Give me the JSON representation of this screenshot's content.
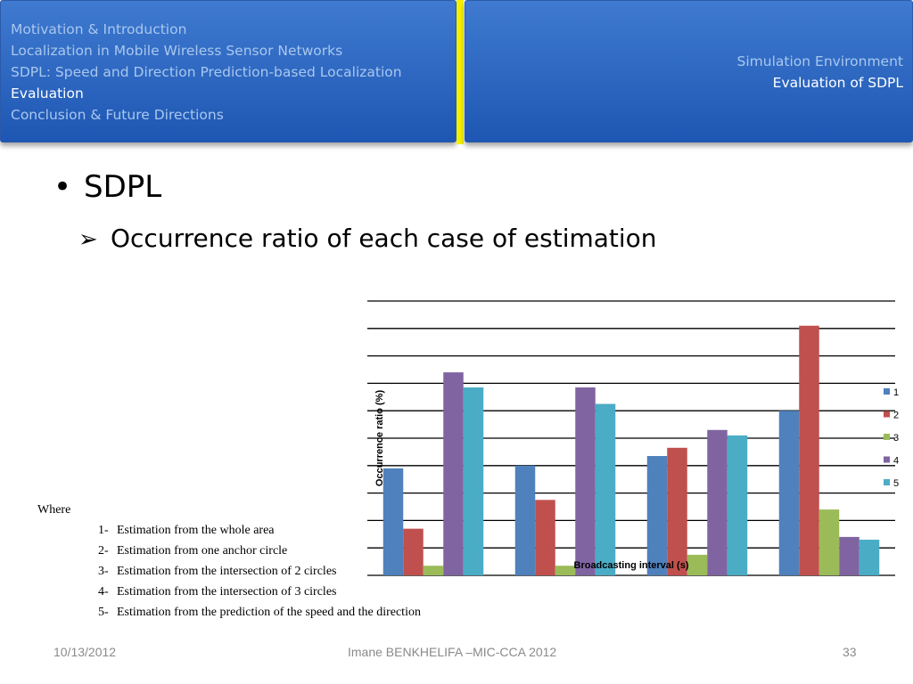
{
  "header": {
    "nav": [
      {
        "label": "Motivation & Introduction",
        "active": false
      },
      {
        "label": "Localization in  Mobile Wireless Sensor Networks",
        "active": false
      },
      {
        "label": "SDPL: Speed and Direction Prediction-based Localization",
        "active": false
      },
      {
        "label": "Evaluation",
        "active": true
      },
      {
        "label": "Conclusion & Future Directions",
        "active": false
      }
    ],
    "subnav": [
      {
        "label": "Simulation Environment",
        "active": false
      },
      {
        "label": "Evaluation of SDPL",
        "active": true
      }
    ],
    "colors": {
      "panel": "#2d6ac4",
      "divider": "#f5f000",
      "inactive_text": "#a9c7ee",
      "active_text": "#ffffff"
    }
  },
  "content": {
    "bullet": "SDPL",
    "subbullet": "Occurrence ratio of each case of estimation",
    "bullet_icon": "bullet-dot-icon",
    "subbullet_icon": "arrow-bullet-icon"
  },
  "chart_data": {
    "type": "bar",
    "ylabel": "Occurrence ratio  (%)",
    "xlabel": "Broadcasting interval (s)",
    "ylim": [
      0,
      10
    ],
    "grid": true,
    "legend_position": "right",
    "categories": [
      "",
      "",
      "",
      ""
    ],
    "series": [
      {
        "name": "1",
        "color": "#4f81bd",
        "values": [
          3.9,
          4.0,
          4.35,
          6.0
        ]
      },
      {
        "name": "2",
        "color": "#c0504d",
        "values": [
          1.7,
          2.75,
          4.65,
          9.1
        ]
      },
      {
        "name": "3",
        "color": "#9bbb59",
        "values": [
          0.35,
          0.35,
          0.75,
          2.4
        ]
      },
      {
        "name": "4",
        "color": "#8064a2",
        "values": [
          7.4,
          6.85,
          5.3,
          1.4
        ]
      },
      {
        "name": "5",
        "color": "#4bacc6",
        "values": [
          6.85,
          6.25,
          5.1,
          1.3
        ]
      }
    ]
  },
  "legend_notes": {
    "where": "Where",
    "items": [
      {
        "num": "1-",
        "text": "Estimation from the whole area"
      },
      {
        "num": "2-",
        "text": "Estimation from one anchor circle"
      },
      {
        "num": "3-",
        "text": "Estimation from  the intersection of 2 circles"
      },
      {
        "num": "4-",
        "text": "Estimation from the intersection of 3 circles"
      },
      {
        "num": "5-",
        "text": "Estimation from the prediction of the speed and the direction"
      }
    ]
  },
  "footer": {
    "date": "10/13/2012",
    "center": "Imane BENKHELIFA –MIC-CCA 2012",
    "page": "33"
  }
}
